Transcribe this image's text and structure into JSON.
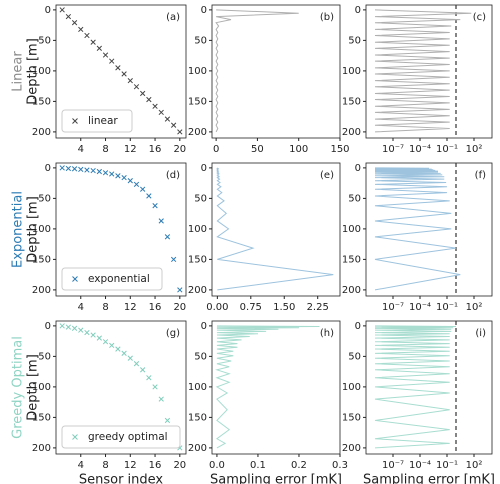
{
  "chart_data": [
    {
      "type": "scatter",
      "annotation": "(a)",
      "row_label": "Linear",
      "row_color": "#8a8a8a",
      "ylabel": "Depth [m]",
      "xlim": [
        0,
        21
      ],
      "xticks": [
        4,
        8,
        12,
        16,
        20
      ],
      "ylim": [
        210,
        -8
      ],
      "yticks": [
        0,
        50,
        100,
        150,
        200
      ],
      "legend": "lower left",
      "series": [
        {
          "name": "linear",
          "color": "#444444",
          "x": [
            1,
            2,
            3,
            4,
            5,
            6,
            7,
            8,
            9,
            10,
            11,
            12,
            13,
            14,
            15,
            16,
            17,
            18,
            19,
            20
          ],
          "y": [
            0,
            11,
            21,
            32,
            42,
            53,
            63,
            74,
            84,
            95,
            105,
            116,
            126,
            137,
            147,
            158,
            168,
            179,
            189,
            200
          ]
        }
      ]
    },
    {
      "type": "line",
      "annotation": "(b)",
      "xlim": [
        -5,
        150
      ],
      "xticks": [
        0,
        50,
        100,
        150
      ],
      "ylim": [
        210,
        -8
      ],
      "yticks": [
        0,
        50,
        100,
        150,
        200
      ],
      "series": [
        {
          "color": "#b0b0b0",
          "x": [
            0,
            100,
            0,
            18,
            0,
            3,
            0,
            2,
            0,
            2,
            0,
            2,
            0,
            2,
            0,
            2,
            0,
            2,
            0,
            2,
            0,
            2,
            0,
            2,
            0,
            2,
            0,
            2,
            0,
            2,
            0,
            2,
            0,
            2,
            0,
            2,
            0,
            2,
            0
          ],
          "y": [
            0,
            5.5,
            11,
            16,
            21,
            26.5,
            32,
            37,
            42,
            47.5,
            53,
            58,
            63,
            68.5,
            74,
            79,
            84,
            89.5,
            95,
            100,
            105,
            110.5,
            116,
            121,
            126,
            131.5,
            137,
            142,
            147,
            152.5,
            158,
            163,
            168,
            173.5,
            179,
            184,
            189,
            194.5,
            200
          ]
        }
      ]
    },
    {
      "type": "line",
      "annotation": "(c)",
      "xlog": true,
      "vline": 1,
      "xlim": [
        1e-10,
        10000
      ],
      "xticks": [
        {
          "value": 1e-07,
          "label": "10⁻⁷"
        },
        {
          "value": 0.0001,
          "label": "10⁻⁴"
        },
        {
          "value": 0.1,
          "label": "10⁻¹"
        },
        {
          "value": 100,
          "label": "10²"
        }
      ],
      "ylim": [
        210,
        -8
      ],
      "yticks": [
        0,
        50,
        100,
        150,
        200
      ],
      "series": [
        {
          "color": "#b0b0b0",
          "x": [
            1e-09,
            50,
            1e-09,
            3,
            1e-09,
            0.3,
            1e-09,
            0.2,
            1e-09,
            0.2,
            1e-09,
            0.2,
            1e-09,
            0.2,
            1e-09,
            0.2,
            1e-09,
            0.2,
            1e-09,
            0.2,
            1e-09,
            0.2,
            1e-09,
            0.2,
            1e-09,
            0.2,
            1e-09,
            0.2,
            1e-09,
            0.2,
            1e-09,
            0.2,
            1e-09,
            0.2,
            1e-09,
            0.2,
            1e-09,
            0.2,
            1e-09
          ],
          "y": [
            0,
            5.5,
            11,
            16,
            21,
            26.5,
            32,
            37,
            42,
            47.5,
            53,
            58,
            63,
            68.5,
            74,
            79,
            84,
            89.5,
            95,
            100,
            105,
            110.5,
            116,
            121,
            126,
            131.5,
            137,
            142,
            147,
            152.5,
            158,
            163,
            168,
            173.5,
            179,
            184,
            189,
            194.5,
            200
          ]
        }
      ]
    },
    {
      "type": "scatter",
      "annotation": "(d)",
      "row_label": "Exponential",
      "row_color": "#2b7bb4",
      "ylabel": "Depth [m]",
      "xlim": [
        0,
        21
      ],
      "xticks": [
        4,
        8,
        12,
        16,
        20
      ],
      "ylim": [
        210,
        -8
      ],
      "yticks": [
        0,
        50,
        100,
        150,
        200
      ],
      "legend": "lower left",
      "series": [
        {
          "name": "exponential",
          "color": "#2b7bb4",
          "x": [
            1,
            2,
            3,
            4,
            5,
            6,
            7,
            8,
            9,
            10,
            11,
            12,
            13,
            14,
            15,
            16,
            17,
            18,
            19,
            20
          ],
          "y": [
            0,
            1,
            1.5,
            2.5,
            3.5,
            4.5,
            6,
            8,
            10,
            13,
            16,
            21,
            27,
            35,
            46,
            62,
            87,
            113,
            150,
            200
          ]
        }
      ]
    },
    {
      "type": "line",
      "annotation": "(e)",
      "xlim": [
        -0.12,
        2.75
      ],
      "xticks": [
        {
          "value": 0,
          "label": "0.00"
        },
        0.75,
        {
          "value": 1.5,
          "label": "1.50"
        },
        2.25
      ],
      "ylim": [
        210,
        -8
      ],
      "yticks": [
        0,
        50,
        100,
        150,
        200
      ],
      "series": [
        {
          "color": "#9dc3de",
          "x": [
            0,
            0.01,
            0,
            0.01,
            0,
            0.01,
            0,
            0.01,
            0,
            0.01,
            0,
            0.02,
            0,
            0.02,
            0,
            0.03,
            0,
            0.03,
            0,
            0.04,
            0,
            0.05,
            0,
            0.06,
            0,
            0.08,
            0,
            0.1,
            0,
            0.15,
            0,
            0.2,
            0,
            0.25,
            0,
            0.8,
            0,
            2.6,
            0
          ],
          "y": [
            0,
            0.5,
            1,
            1.25,
            1.5,
            2,
            2.5,
            3,
            3.5,
            4,
            4.5,
            5.25,
            6,
            7,
            8,
            9,
            10,
            11.5,
            13,
            14.5,
            16,
            18.5,
            21,
            24,
            27,
            31,
            35,
            40.5,
            46,
            54,
            62,
            74.5,
            87,
            100,
            113,
            131.5,
            150,
            175,
            200
          ]
        }
      ]
    },
    {
      "type": "line",
      "annotation": "(f)",
      "xlog": true,
      "vline": 1,
      "xlim": [
        1e-10,
        10000
      ],
      "xticks": [
        {
          "value": 1e-07,
          "label": "10⁻⁷"
        },
        {
          "value": 0.0001,
          "label": "10⁻⁴"
        },
        {
          "value": 0.1,
          "label": "10⁻¹"
        },
        {
          "value": 100,
          "label": "10²"
        }
      ],
      "ylim": [
        210,
        -8
      ],
      "yticks": [
        0,
        50,
        100,
        150,
        200
      ],
      "series": [
        {
          "color": "#9dc3de",
          "x": [
            1e-09,
            0.001,
            1e-09,
            0.001,
            1e-09,
            0.002,
            1e-09,
            0.003,
            1e-09,
            0.005,
            1e-09,
            0.01,
            1e-09,
            0.01,
            1e-09,
            0.02,
            1e-09,
            0.03,
            1e-09,
            0.05,
            1e-09,
            0.05,
            1e-09,
            0.08,
            1e-09,
            0.1,
            1e-09,
            0.1,
            1e-09,
            0.2,
            1e-09,
            0.3,
            1e-09,
            0.3,
            1e-09,
            1,
            1e-09,
            3,
            1e-09
          ],
          "y": [
            0,
            0.5,
            1,
            1.25,
            1.5,
            2,
            2.5,
            3,
            3.5,
            4,
            4.5,
            5.25,
            6,
            7,
            8,
            9,
            10,
            11.5,
            13,
            14.5,
            16,
            18.5,
            21,
            24,
            27,
            31,
            35,
            40.5,
            46,
            54,
            62,
            74.5,
            87,
            100,
            113,
            131.5,
            150,
            175,
            200
          ]
        }
      ]
    },
    {
      "type": "scatter",
      "annotation": "(g)",
      "row_label": "Greedy Optimal",
      "row_color": "#8fd4c3",
      "ylabel": "Depth [m]",
      "xlabel": "Sensor index",
      "xlim": [
        0,
        21
      ],
      "xticks": [
        4,
        8,
        12,
        16,
        20
      ],
      "ylim": [
        210,
        -8
      ],
      "yticks": [
        0,
        50,
        100,
        150,
        200
      ],
      "legend": "lower left",
      "series": [
        {
          "name": "greedy optimal",
          "color": "#7fcdbb",
          "x": [
            1,
            2,
            3,
            4,
            5,
            6,
            7,
            8,
            9,
            10,
            11,
            12,
            13,
            14,
            15,
            16,
            17,
            18,
            19,
            20
          ],
          "y": [
            0,
            2,
            4,
            7,
            11,
            15,
            20,
            26,
            32,
            38,
            45,
            53,
            62,
            72,
            85,
            100,
            120,
            155,
            185,
            200
          ]
        }
      ]
    },
    {
      "type": "line",
      "annotation": "(h)",
      "xlabel": "Sampling error [mK]",
      "xlim": [
        -0.012,
        0.3
      ],
      "xticks": [
        {
          "value": 0,
          "label": "0.0"
        },
        0.1,
        0.2,
        0.3
      ],
      "ylim": [
        210,
        -8
      ],
      "yticks": [
        0,
        50,
        100,
        150,
        200
      ],
      "series": [
        {
          "color": "#a8ddd0",
          "x": [
            0,
            0.25,
            0,
            0.2,
            0,
            0.15,
            0,
            0.12,
            0,
            0.1,
            0,
            0.08,
            0,
            0.06,
            0,
            0.05,
            0,
            0.05,
            0,
            0.04,
            0,
            0.04,
            0,
            0.035,
            0,
            0.03,
            0,
            0.03,
            0,
            0.03,
            0,
            0.025,
            0,
            0.025,
            0,
            0.03,
            0,
            0.02,
            0
          ],
          "y": [
            0,
            1,
            2,
            3,
            4,
            5.5,
            7,
            9,
            11,
            13,
            15,
            17.5,
            20,
            23,
            26,
            29,
            32,
            35,
            38,
            41.5,
            45,
            49,
            53,
            57.5,
            62,
            67,
            72,
            78.5,
            85,
            92.5,
            100,
            110,
            120,
            137.5,
            155,
            170,
            185,
            192.5,
            200
          ]
        }
      ]
    },
    {
      "type": "line",
      "annotation": "(i)",
      "xlog": true,
      "vline": 1,
      "xlabel": "Sampling error [mK]",
      "xlim": [
        1e-10,
        10000
      ],
      "xticks": [
        {
          "value": 1e-07,
          "label": "10⁻⁷"
        },
        {
          "value": 0.0001,
          "label": "10⁻⁴"
        },
        {
          "value": 0.1,
          "label": "10⁻¹"
        },
        {
          "value": 100,
          "label": "10²"
        }
      ],
      "ylim": [
        210,
        -8
      ],
      "yticks": [
        0,
        50,
        100,
        150,
        200
      ],
      "series": [
        {
          "color": "#a8ddd0",
          "x": [
            1e-09,
            1,
            1e-09,
            0.5,
            1e-09,
            0.3,
            1e-09,
            0.3,
            1e-09,
            0.2,
            1e-09,
            0.2,
            1e-09,
            0.2,
            1e-09,
            0.2,
            1e-09,
            0.2,
            1e-09,
            0.2,
            1e-09,
            0.2,
            1e-09,
            0.2,
            1e-09,
            0.2,
            1e-09,
            0.2,
            1e-09,
            0.2,
            1e-09,
            0.2,
            1e-09,
            0.2,
            1e-09,
            0.2,
            1e-09,
            0.2,
            1e-09
          ],
          "y": [
            0,
            1,
            2,
            3,
            4,
            5.5,
            7,
            9,
            11,
            13,
            15,
            17.5,
            20,
            23,
            26,
            29,
            32,
            35,
            38,
            41.5,
            45,
            49,
            53,
            57.5,
            62,
            67,
            72,
            78.5,
            85,
            92.5,
            100,
            110,
            120,
            137.5,
            155,
            170,
            185,
            192.5,
            200
          ]
        }
      ]
    }
  ]
}
